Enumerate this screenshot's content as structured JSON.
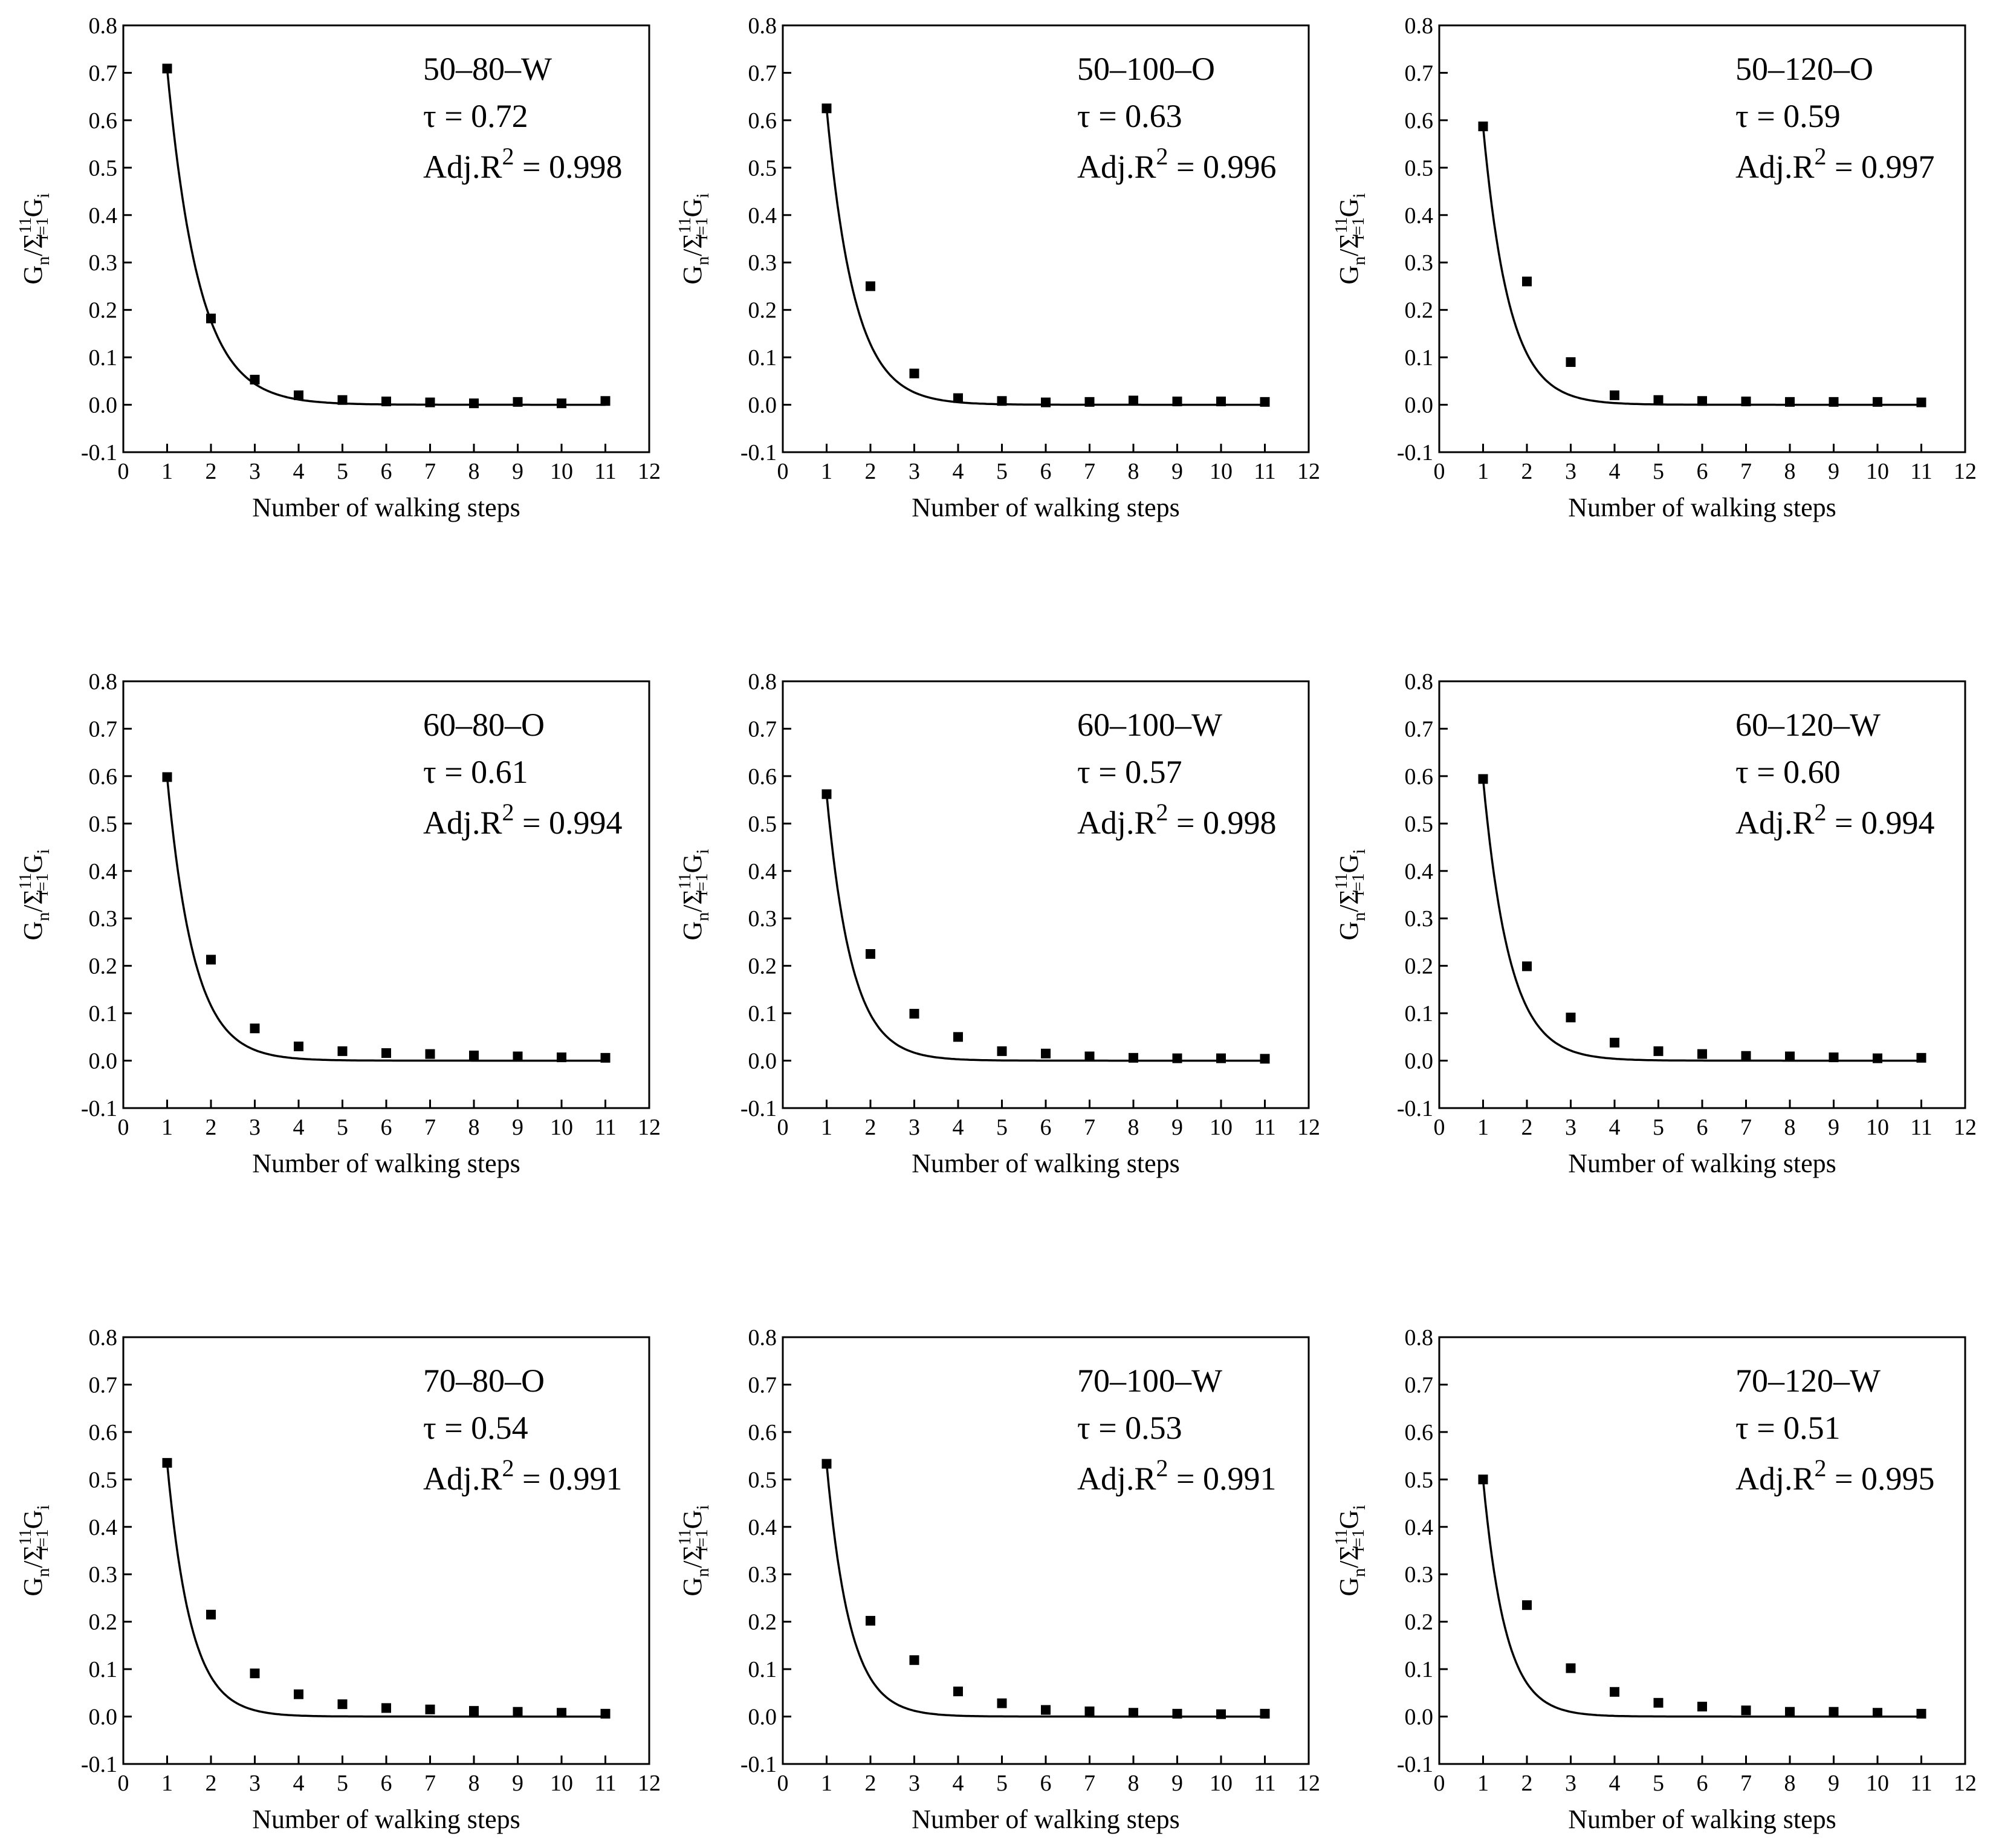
{
  "chart_data": [
    {
      "type": "scatter",
      "title": "50–80–W",
      "tau": "τ = 0.72",
      "adj_r2": "0.998",
      "xlabel": "Number of walking steps",
      "ylabel": "Gn/Σ11i=1Gi",
      "xlim": [
        0,
        12
      ],
      "ylim": [
        -0.1,
        0.8
      ],
      "xticks": [
        0,
        1,
        2,
        3,
        4,
        5,
        6,
        7,
        8,
        9,
        10,
        11,
        12
      ],
      "yticks": [
        -0.1,
        0.0,
        0.1,
        0.2,
        0.3,
        0.4,
        0.5,
        0.6,
        0.7,
        0.8
      ],
      "x": [
        1,
        2,
        3,
        4,
        5,
        6,
        7,
        8,
        9,
        10,
        11
      ],
      "values": [
        0.709,
        0.182,
        0.053,
        0.02,
        0.01,
        0.007,
        0.005,
        0.003,
        0.006,
        0.003,
        0.008
      ],
      "fit": {
        "type": "exponential",
        "A": 0.709,
        "tau": 0.72
      }
    },
    {
      "type": "scatter",
      "title": "50–100–O",
      "tau": "τ = 0.63",
      "adj_r2": "0.996",
      "xlabel": "Number of walking steps",
      "ylabel": "Gn/Σ11i=1Gi",
      "xlim": [
        0,
        12
      ],
      "ylim": [
        -0.1,
        0.8
      ],
      "xticks": [
        0,
        1,
        2,
        3,
        4,
        5,
        6,
        7,
        8,
        9,
        10,
        11,
        12
      ],
      "yticks": [
        -0.1,
        0.0,
        0.1,
        0.2,
        0.3,
        0.4,
        0.5,
        0.6,
        0.7,
        0.8
      ],
      "x": [
        1,
        2,
        3,
        4,
        5,
        6,
        7,
        8,
        9,
        10,
        11
      ],
      "values": [
        0.625,
        0.25,
        0.066,
        0.014,
        0.008,
        0.005,
        0.006,
        0.009,
        0.007,
        0.007,
        0.006
      ],
      "fit": {
        "type": "exponential",
        "A": 0.625,
        "tau": 0.63
      }
    },
    {
      "type": "scatter",
      "title": "50–120–O",
      "tau": "τ = 0.59",
      "adj_r2": "0.997",
      "xlabel": "Number of walking steps",
      "ylabel": "Gn/Σ11i=1Gi",
      "xlim": [
        0,
        12
      ],
      "ylim": [
        -0.1,
        0.8
      ],
      "xticks": [
        0,
        1,
        2,
        3,
        4,
        5,
        6,
        7,
        8,
        9,
        10,
        11,
        12
      ],
      "yticks": [
        -0.1,
        0.0,
        0.1,
        0.2,
        0.3,
        0.4,
        0.5,
        0.6,
        0.7,
        0.8
      ],
      "x": [
        1,
        2,
        3,
        4,
        5,
        6,
        7,
        8,
        9,
        10,
        11
      ],
      "values": [
        0.587,
        0.26,
        0.09,
        0.02,
        0.01,
        0.008,
        0.007,
        0.006,
        0.006,
        0.006,
        0.005
      ],
      "fit": {
        "type": "exponential",
        "A": 0.587,
        "tau": 0.59
      }
    },
    {
      "type": "scatter",
      "title": "60–80–O",
      "tau": "τ = 0.61",
      "adj_r2": "0.994",
      "xlabel": "Number of walking steps",
      "ylabel": "Gn/Σ11i=1Gi",
      "xlim": [
        0,
        12
      ],
      "ylim": [
        -0.1,
        0.8
      ],
      "xticks": [
        0,
        1,
        2,
        3,
        4,
        5,
        6,
        7,
        8,
        9,
        10,
        11,
        12
      ],
      "yticks": [
        -0.1,
        0.0,
        0.1,
        0.2,
        0.3,
        0.4,
        0.5,
        0.6,
        0.7,
        0.8
      ],
      "x": [
        1,
        2,
        3,
        4,
        5,
        6,
        7,
        8,
        9,
        10,
        11
      ],
      "values": [
        0.598,
        0.213,
        0.068,
        0.03,
        0.02,
        0.016,
        0.014,
        0.011,
        0.009,
        0.007,
        0.006
      ],
      "fit": {
        "type": "exponential",
        "A": 0.598,
        "tau": 0.61
      }
    },
    {
      "type": "scatter",
      "title": "60–100–W",
      "tau": "τ = 0.57",
      "adj_r2": "0.998",
      "xlabel": "Number of walking steps",
      "ylabel": "Gn/Σ11i=1Gi",
      "xlim": [
        0,
        12
      ],
      "ylim": [
        -0.1,
        0.8
      ],
      "xticks": [
        0,
        1,
        2,
        3,
        4,
        5,
        6,
        7,
        8,
        9,
        10,
        11,
        12
      ],
      "yticks": [
        -0.1,
        0.0,
        0.1,
        0.2,
        0.3,
        0.4,
        0.5,
        0.6,
        0.7,
        0.8
      ],
      "x": [
        1,
        2,
        3,
        4,
        5,
        6,
        7,
        8,
        9,
        10,
        11
      ],
      "values": [
        0.562,
        0.225,
        0.099,
        0.05,
        0.02,
        0.015,
        0.009,
        0.006,
        0.005,
        0.005,
        0.004
      ],
      "fit": {
        "type": "exponential",
        "A": 0.562,
        "tau": 0.57
      }
    },
    {
      "type": "scatter",
      "title": "60–120–W",
      "tau": "τ = 0.60",
      "adj_r2": "0.994",
      "xlabel": "Number of walking steps",
      "ylabel": "Gn/Σ11i=1Gi",
      "xlim": [
        0,
        12
      ],
      "ylim": [
        -0.1,
        0.8
      ],
      "xticks": [
        0,
        1,
        2,
        3,
        4,
        5,
        6,
        7,
        8,
        9,
        10,
        11,
        12
      ],
      "yticks": [
        -0.1,
        0.0,
        0.1,
        0.2,
        0.3,
        0.4,
        0.5,
        0.6,
        0.7,
        0.8
      ],
      "x": [
        1,
        2,
        3,
        4,
        5,
        6,
        7,
        8,
        9,
        10,
        11
      ],
      "values": [
        0.594,
        0.199,
        0.091,
        0.038,
        0.02,
        0.014,
        0.01,
        0.009,
        0.007,
        0.005,
        0.006
      ],
      "fit": {
        "type": "exponential",
        "A": 0.594,
        "tau": 0.6
      }
    },
    {
      "type": "scatter",
      "title": "70–80–O",
      "tau": "τ = 0.54",
      "adj_r2": "0.991",
      "xlabel": "Number of walking steps",
      "ylabel": "Gn/Σ11i=1Gi",
      "xlim": [
        0,
        12
      ],
      "ylim": [
        -0.1,
        0.8
      ],
      "xticks": [
        0,
        1,
        2,
        3,
        4,
        5,
        6,
        7,
        8,
        9,
        10,
        11,
        12
      ],
      "yticks": [
        -0.1,
        0.0,
        0.1,
        0.2,
        0.3,
        0.4,
        0.5,
        0.6,
        0.7,
        0.8
      ],
      "x": [
        1,
        2,
        3,
        4,
        5,
        6,
        7,
        8,
        9,
        10,
        11
      ],
      "values": [
        0.535,
        0.215,
        0.091,
        0.047,
        0.026,
        0.018,
        0.015,
        0.012,
        0.01,
        0.008,
        0.006
      ],
      "fit": {
        "type": "exponential",
        "A": 0.535,
        "tau": 0.54
      }
    },
    {
      "type": "scatter",
      "title": "70–100–W",
      "tau": "τ = 0.53",
      "adj_r2": "0.991",
      "xlabel": "Number of walking steps",
      "ylabel": "Gn/Σ11i=1Gi",
      "xlim": [
        0,
        12
      ],
      "ylim": [
        -0.1,
        0.8
      ],
      "xticks": [
        0,
        1,
        2,
        3,
        4,
        5,
        6,
        7,
        8,
        9,
        10,
        11,
        12
      ],
      "yticks": [
        -0.1,
        0.0,
        0.1,
        0.2,
        0.3,
        0.4,
        0.5,
        0.6,
        0.7,
        0.8
      ],
      "x": [
        1,
        2,
        3,
        4,
        5,
        6,
        7,
        8,
        9,
        10,
        11
      ],
      "values": [
        0.533,
        0.202,
        0.119,
        0.053,
        0.028,
        0.014,
        0.011,
        0.008,
        0.006,
        0.005,
        0.006
      ],
      "fit": {
        "type": "exponential",
        "A": 0.533,
        "tau": 0.53
      }
    },
    {
      "type": "scatter",
      "title": "70–120–W",
      "tau": "τ = 0.51",
      "adj_r2": "0.995",
      "xlabel": "Number of walking steps",
      "ylabel": "Gn/Σ11i=1Gi",
      "xlim": [
        0,
        12
      ],
      "ylim": [
        -0.1,
        0.8
      ],
      "xticks": [
        0,
        1,
        2,
        3,
        4,
        5,
        6,
        7,
        8,
        9,
        10,
        11,
        12
      ],
      "yticks": [
        -0.1,
        0.0,
        0.1,
        0.2,
        0.3,
        0.4,
        0.5,
        0.6,
        0.7,
        0.8
      ],
      "x": [
        1,
        2,
        3,
        4,
        5,
        6,
        7,
        8,
        9,
        10,
        11
      ],
      "values": [
        0.5,
        0.235,
        0.102,
        0.052,
        0.029,
        0.021,
        0.013,
        0.01,
        0.01,
        0.008,
        0.006
      ],
      "fit": {
        "type": "exponential",
        "A": 0.5,
        "tau": 0.51
      }
    }
  ]
}
